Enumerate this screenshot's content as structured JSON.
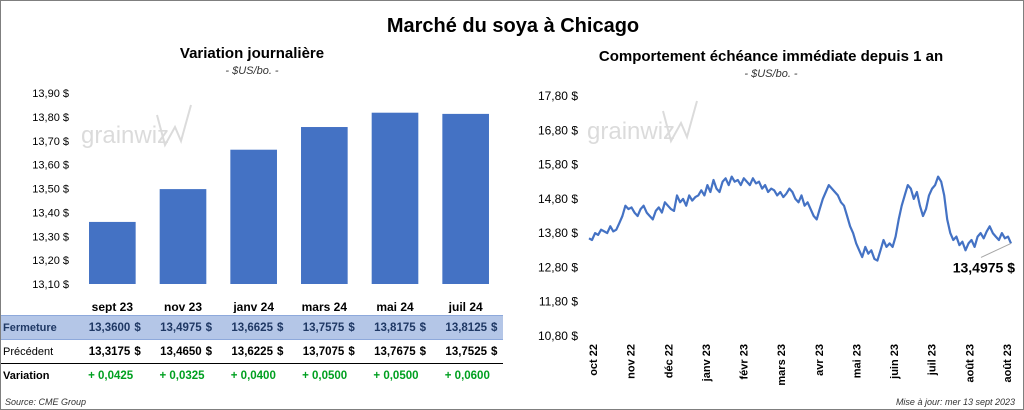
{
  "title": "Marché du soya à Chicago",
  "source": "Source: CME Group",
  "update": "Mise à jour: mer 13 sept 2023",
  "watermark": "grainwiz",
  "colors": {
    "bar": "#4472c4",
    "line": "#4472c4",
    "positive": "#00a020",
    "header_row": "#b4c6e7"
  },
  "chart_data": [
    {
      "type": "bar",
      "title": "Variation journalière",
      "subtitle": "- $US/bo. -",
      "categories": [
        "sept 23",
        "nov 23",
        "janv 24",
        "mars 24",
        "mai 24",
        "juil 24"
      ],
      "values": [
        13.36,
        13.4975,
        13.6625,
        13.7575,
        13.8175,
        13.8125
      ],
      "ylim": [
        13.1,
        13.9
      ],
      "yticks": [
        "13,10 $",
        "13,20 $",
        "13,30 $",
        "13,40 $",
        "13,50 $",
        "13,60 $",
        "13,70 $",
        "13,80 $",
        "13,90 $"
      ],
      "grid": false
    },
    {
      "type": "line",
      "title": "Comportement échéance immédiate depuis 1 an",
      "subtitle": "- $US/bo. -",
      "ylim": [
        10.8,
        17.8
      ],
      "yticks": [
        "10,80 $",
        "11,80 $",
        "12,80 $",
        "13,80 $",
        "14,80 $",
        "15,80 $",
        "16,80 $",
        "17,80 $"
      ],
      "xticks": [
        "oct 22",
        "nov 22",
        "déc 22",
        "janv 23",
        "févr 23",
        "mars 23",
        "avr 23",
        "mai 23",
        "juin 23",
        "juil 23",
        "août 23",
        "août 23"
      ],
      "last_label": "13,4975 $",
      "series": [
        {
          "values": [
            13.65,
            13.6,
            13.8,
            13.75,
            13.9,
            13.85,
            13.8,
            14.0,
            13.85,
            13.9,
            14.1,
            14.3,
            14.6,
            14.5,
            14.55,
            14.4,
            14.3,
            14.5,
            14.6,
            14.4,
            14.3,
            14.2,
            14.45,
            14.55,
            14.4,
            14.7,
            14.6,
            14.5,
            14.45,
            14.9,
            14.7,
            14.8,
            14.6,
            14.9,
            14.75,
            14.85,
            14.9,
            15.05,
            14.9,
            15.2,
            15.0,
            15.35,
            15.1,
            15.0,
            15.3,
            15.4,
            15.2,
            15.45,
            15.3,
            15.35,
            15.2,
            15.4,
            15.3,
            15.2,
            15.4,
            15.25,
            15.3,
            15.1,
            15.2,
            15.0,
            15.1,
            15.05,
            14.9,
            15.0,
            14.85,
            14.95,
            15.1,
            15.0,
            14.8,
            14.7,
            14.9,
            14.6,
            14.7,
            14.5,
            14.3,
            14.2,
            14.5,
            14.8,
            15.0,
            15.2,
            15.1,
            15.0,
            14.9,
            14.7,
            14.6,
            14.3,
            14.0,
            13.8,
            13.5,
            13.3,
            13.1,
            13.4,
            13.2,
            13.3,
            13.05,
            13.0,
            13.3,
            13.6,
            13.4,
            13.5,
            13.4,
            13.7,
            14.2,
            14.6,
            14.9,
            15.2,
            15.1,
            14.8,
            15.0,
            14.6,
            14.3,
            14.5,
            14.9,
            15.1,
            15.2,
            15.45,
            15.3,
            14.9,
            14.2,
            13.8,
            13.6,
            13.7,
            13.45,
            13.55,
            13.3,
            13.5,
            13.6,
            13.4,
            13.7,
            13.8,
            13.65,
            13.85,
            14.0,
            13.8,
            13.7,
            13.6,
            13.8,
            13.65,
            13.7,
            13.5
          ]
        }
      ]
    }
  ],
  "table": {
    "rows": [
      {
        "label": "Fermeture",
        "cells": [
          "13,3600",
          "13,4975",
          "13,6625",
          "13,7575",
          "13,8175",
          "13,8125"
        ]
      },
      {
        "label": "Précédent",
        "cells": [
          "13,3175",
          "13,4650",
          "13,6225",
          "13,7075",
          "13,7675",
          "13,7525"
        ]
      },
      {
        "label": "Variation",
        "cells": [
          "+ 0,0425",
          "+ 0,0325",
          "+ 0,0400",
          "+ 0,0500",
          "+ 0,0500",
          "+ 0,0600"
        ]
      }
    ],
    "currency": "$"
  }
}
